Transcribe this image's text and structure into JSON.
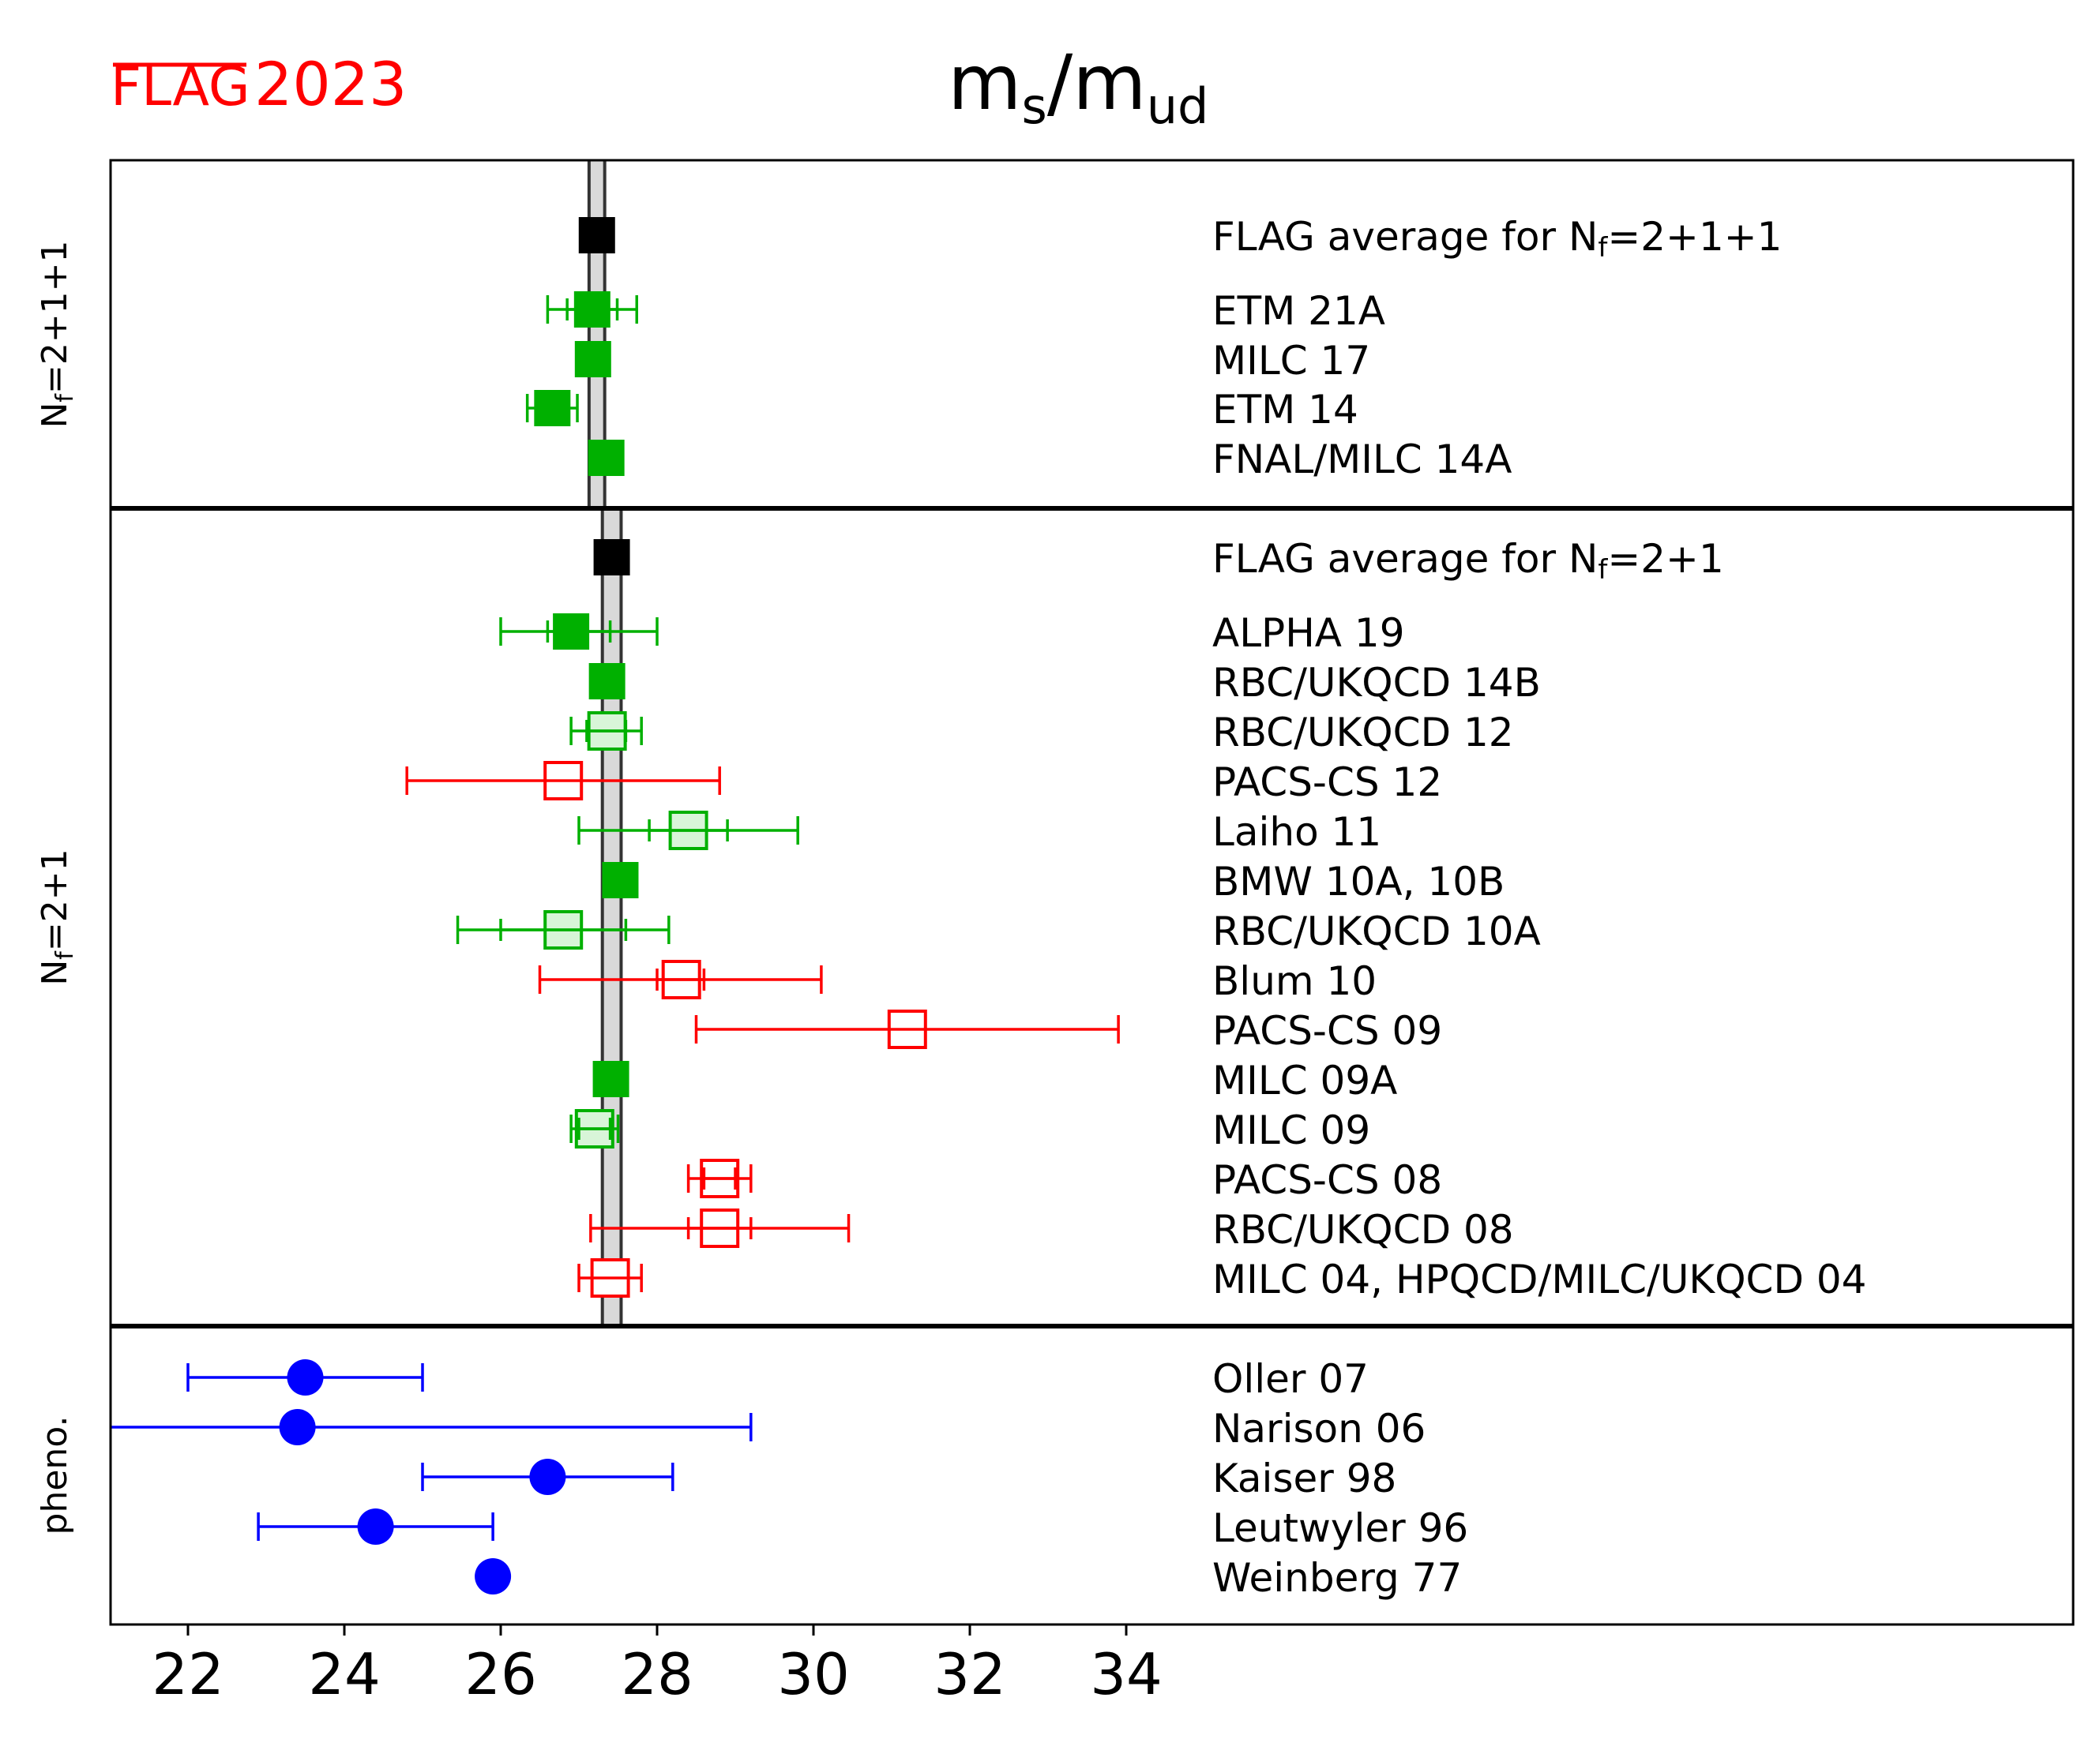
{
  "logo": {
    "flag_text": "FLAG",
    "year_text": "2023",
    "color": "#ff0000"
  },
  "chart_data": {
    "type": "forest",
    "title": {
      "main": "m",
      "sub1": "s",
      "slash": "/m",
      "sub2": "ud"
    },
    "xlim": [
      21,
      33.6
    ],
    "x_ticks": [
      22,
      24,
      26,
      28,
      30,
      32,
      34
    ],
    "colors": {
      "green": "#00b000",
      "green_fill": "#d8f5d8",
      "red": "#ff0000",
      "blue": "#0000ff",
      "black": "#000000",
      "band": "#d9d9d9"
    },
    "panels": [
      {
        "label": "N",
        "label_sub": "f",
        "label_rest": "=2+1+1",
        "band": {
          "center": 27.23,
          "half_width": 0.1
        },
        "rows": [
          {
            "name": "FLAG average for N",
            "name_sub": "f",
            "name_rest": "=2+1+1",
            "value": 27.23,
            "stat": null,
            "total": null,
            "style": "avg"
          },
          {
            "name": "ETM 21A",
            "value": 27.17,
            "stat": [
              26.85,
              27.49
            ],
            "total": [
              26.6,
              27.74
            ],
            "style": "green-filled"
          },
          {
            "name": "MILC 17",
            "value": 27.18,
            "stat": null,
            "total": null,
            "style": "green-filled"
          },
          {
            "name": "ETM 14",
            "value": 26.66,
            "stat": [
              26.46,
              26.86
            ],
            "total": [
              26.34,
              26.98
            ],
            "style": "green-filled"
          },
          {
            "name": "FNAL/MILC 14A",
            "value": 27.35,
            "stat": null,
            "total": null,
            "style": "green-filled"
          }
        ]
      },
      {
        "label": "N",
        "label_sub": "f",
        "label_rest": "=2+1",
        "band": {
          "center": 27.42,
          "half_width": 0.12
        },
        "rows": [
          {
            "name": "FLAG average for N",
            "name_sub": "f",
            "name_rest": "=2+1",
            "value": 27.42,
            "stat": null,
            "total": null,
            "style": "avg"
          },
          {
            "name": "ALPHA 19",
            "value": 26.9,
            "stat": [
              26.6,
              27.4
            ],
            "total": [
              26.0,
              28.0
            ],
            "style": "green-filled"
          },
          {
            "name": "RBC/UKQCD 14B",
            "value": 27.36,
            "stat": null,
            "total": null,
            "style": "green-filled"
          },
          {
            "name": "RBC/UKQCD 12",
            "value": 27.36,
            "stat": [
              27.1,
              27.6
            ],
            "total": [
              26.9,
              27.8
            ],
            "style": "green-open"
          },
          {
            "name": "PACS-CS 12",
            "value": 26.8,
            "stat": null,
            "total": [
              24.8,
              28.8
            ],
            "style": "red-open"
          },
          {
            "name": "Laiho 11",
            "value": 28.4,
            "stat": [
              27.9,
              28.9
            ],
            "total": [
              27.0,
              29.8
            ],
            "style": "green-open"
          },
          {
            "name": "BMW 10A, 10B",
            "value": 27.53,
            "stat": null,
            "total": null,
            "style": "green-filled"
          },
          {
            "name": "RBC/UKQCD 10A",
            "value": 26.8,
            "stat": [
              26.0,
              27.6
            ],
            "total": [
              25.45,
              28.15
            ],
            "style": "green-open"
          },
          {
            "name": "Blum 10",
            "value": 28.31,
            "stat": [
              28.0,
              28.6
            ],
            "total": [
              26.5,
              30.1
            ],
            "style": "red-open"
          },
          {
            "name": "PACS-CS 09",
            "value": 31.2,
            "stat": null,
            "total": [
              28.5,
              33.9
            ],
            "style": "red-open"
          },
          {
            "name": "MILC 09A",
            "value": 27.41,
            "stat": null,
            "total": null,
            "style": "green-filled"
          },
          {
            "name": "MILC 09",
            "value": 27.2,
            "stat": [
              27.0,
              27.4
            ],
            "total": [
              26.9,
              27.5
            ],
            "style": "green-open"
          },
          {
            "name": "PACS-CS 08",
            "value": 28.8,
            "stat": [
              28.6,
              29.0
            ],
            "total": [
              28.4,
              29.2
            ],
            "style": "red-open"
          },
          {
            "name": "RBC/UKQCD 08",
            "value": 28.8,
            "stat": [
              28.4,
              29.2
            ],
            "total": [
              27.15,
              30.45
            ],
            "style": "red-open"
          },
          {
            "name": "MILC 04, HPQCD/MILC/UKQCD 04",
            "value": 27.4,
            "stat": null,
            "total": [
              27.0,
              27.8
            ],
            "style": "red-open"
          }
        ]
      },
      {
        "label": "pheno.",
        "rows": [
          {
            "name": "Oller 07",
            "value": 23.5,
            "stat": null,
            "total": [
              22.0,
              25.0
            ],
            "style": "blue-circle"
          },
          {
            "name": "Narison 06",
            "value": 23.4,
            "stat": null,
            "total": [
              21.0,
              29.2
            ],
            "style": "blue-circle"
          },
          {
            "name": "Kaiser 98",
            "value": 26.6,
            "stat": null,
            "total": [
              25.0,
              28.2
            ],
            "style": "blue-circle"
          },
          {
            "name": "Leutwyler 96",
            "value": 24.4,
            "stat": null,
            "total": [
              22.9,
              25.9
            ],
            "style": "blue-circle"
          },
          {
            "name": "Weinberg 77",
            "value": 25.9,
            "stat": null,
            "total": null,
            "style": "blue-circle"
          }
        ]
      }
    ]
  }
}
